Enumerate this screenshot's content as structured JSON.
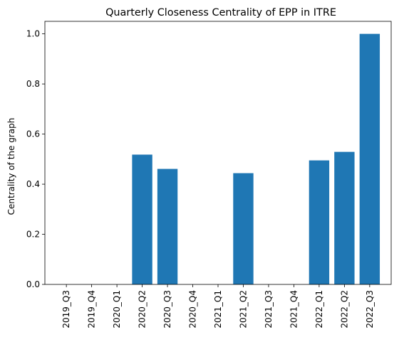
{
  "chart_data": {
    "type": "bar",
    "title": "Quarterly Closeness Centrality of EPP in ITRE",
    "xlabel": "",
    "ylabel": "Centrality of the graph",
    "categories": [
      "2019_Q3",
      "2019_Q4",
      "2020_Q1",
      "2020_Q2",
      "2020_Q3",
      "2020_Q4",
      "2021_Q1",
      "2021_Q2",
      "2021_Q3",
      "2021_Q4",
      "2022_Q1",
      "2022_Q2",
      "2022_Q3"
    ],
    "values": [
      0,
      0,
      0,
      0.518,
      0.461,
      0,
      0,
      0.444,
      0,
      0,
      0.495,
      0.529,
      1.0
    ],
    "ylim": [
      0,
      1.05
    ],
    "yticks": [
      "0.0",
      "0.2",
      "0.4",
      "0.6",
      "0.8",
      "1.0"
    ],
    "bar_color": "#1f77b4",
    "grid": false,
    "legend": "none"
  }
}
